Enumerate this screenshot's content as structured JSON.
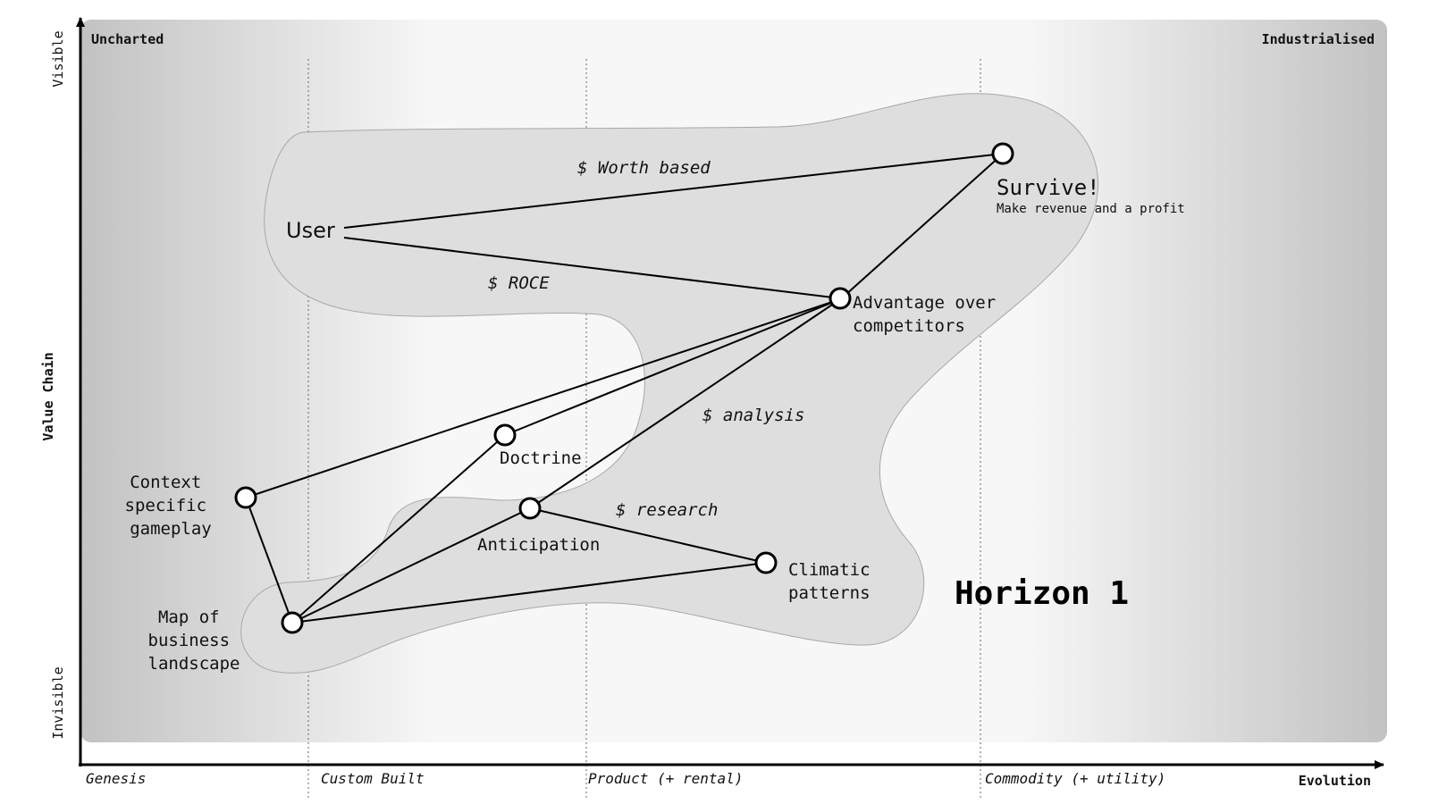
{
  "corners": {
    "top_left": "Uncharted",
    "top_right": "Industrialised"
  },
  "axes": {
    "y_top": "Visible",
    "y_middle": "Value Chain",
    "y_bottom": "Invisible",
    "x_end": "Evolution"
  },
  "stages": [
    "Genesis",
    "Custom Built",
    "Product (+ rental)",
    "Commodity (+ utility)"
  ],
  "region_label": "Horizon 1",
  "nodes": {
    "user": "User",
    "survive": "Survive!",
    "survive_sub": "Make revenue and a profit",
    "advantage": [
      "Advantage over",
      "competitors"
    ],
    "doctrine": "Doctrine",
    "context": [
      "Context",
      "specific",
      "gameplay"
    ],
    "anticipation": "Anticipation",
    "climatic": [
      "Climatic",
      "patterns"
    ],
    "map": [
      "Map of",
      "business",
      "landscape"
    ]
  },
  "edge_labels": {
    "worth": "$ Worth based",
    "roce": "$ ROCE",
    "analysis": "$ analysis",
    "research": "$ research"
  },
  "colors": {
    "background_edge": "#c2c2c2",
    "region_fill": "#dededf",
    "ink": "#000000"
  }
}
